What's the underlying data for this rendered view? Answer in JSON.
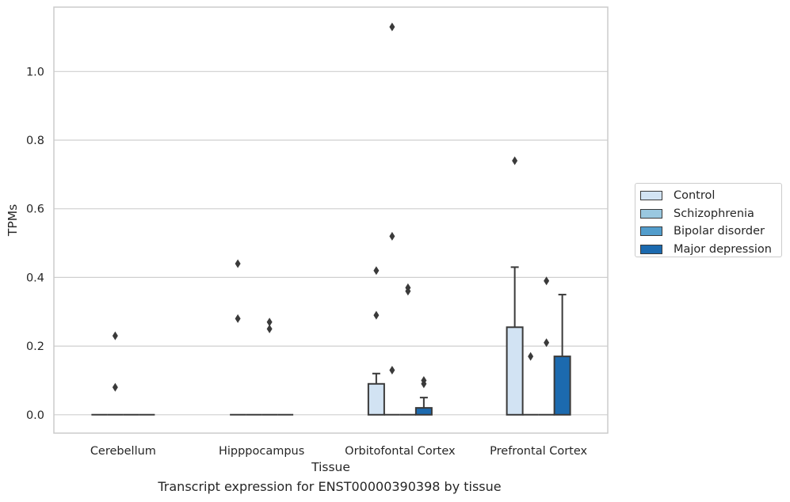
{
  "chart_data": {
    "type": "box",
    "caption": "Transcript expression for ENST00000390398 by tissue",
    "xlabel": "Tissue",
    "ylabel": "TPMs",
    "ylim": [
      -0.055,
      1.18
    ],
    "yticks": [
      "0.0",
      "0.2",
      "0.4",
      "0.6",
      "0.8",
      "1.0"
    ],
    "categories": [
      "Cerebellum",
      "Hipppocampus",
      "Orbitofontal Cortex",
      "Prefrontal Cortex"
    ],
    "grid": true,
    "legend_position": "right",
    "series": [
      {
        "name": "Control",
        "color": "#d2e3f3",
        "boxes": [
          {
            "q1": 0,
            "median": 0,
            "q3": 0,
            "whisker_low": 0,
            "whisker_high": 0,
            "outliers": []
          },
          {
            "q1": 0,
            "median": 0,
            "q3": 0,
            "whisker_low": 0,
            "whisker_high": 0,
            "outliers": [
              0.44,
              0.28
            ]
          },
          {
            "q1": 0,
            "median": 0,
            "q3": 0.09,
            "whisker_low": 0,
            "whisker_high": 0.12,
            "outliers": [
              0.42,
              0.29
            ]
          },
          {
            "q1": 0,
            "median": 0,
            "q3": 0.255,
            "whisker_low": 0,
            "whisker_high": 0.43,
            "outliers": [
              0.74
            ]
          }
        ]
      },
      {
        "name": "Schizophrenia",
        "color": "#9ac8e0",
        "boxes": [
          {
            "q1": 0,
            "median": 0,
            "q3": 0,
            "whisker_low": 0,
            "whisker_high": 0,
            "outliers": [
              0.23,
              0.08
            ]
          },
          {
            "q1": 0,
            "median": 0,
            "q3": 0,
            "whisker_low": 0,
            "whisker_high": 0,
            "outliers": []
          },
          {
            "q1": 0,
            "median": 0,
            "q3": 0,
            "whisker_low": 0,
            "whisker_high": 0,
            "outliers": [
              1.13,
              0.52,
              0.13
            ]
          },
          {
            "q1": 0,
            "median": 0,
            "q3": 0,
            "whisker_low": 0,
            "whisker_high": 0,
            "outliers": [
              0.17
            ]
          }
        ]
      },
      {
        "name": "Bipolar disorder",
        "color": "#529dcc",
        "boxes": [
          {
            "q1": 0,
            "median": 0,
            "q3": 0,
            "whisker_low": 0,
            "whisker_high": 0,
            "outliers": []
          },
          {
            "q1": 0,
            "median": 0,
            "q3": 0,
            "whisker_low": 0,
            "whisker_high": 0,
            "outliers": [
              0.27,
              0.25
            ]
          },
          {
            "q1": 0,
            "median": 0,
            "q3": 0,
            "whisker_low": 0,
            "whisker_high": 0,
            "outliers": [
              0.37,
              0.36
            ]
          },
          {
            "q1": 0,
            "median": 0,
            "q3": 0,
            "whisker_low": 0,
            "whisker_high": 0,
            "outliers": [
              0.39,
              0.21
            ]
          }
        ]
      },
      {
        "name": "Major depression",
        "color": "#1c6aaf",
        "boxes": [
          {
            "q1": 0,
            "median": 0,
            "q3": 0,
            "whisker_low": 0,
            "whisker_high": 0,
            "outliers": []
          },
          {
            "q1": 0,
            "median": 0,
            "q3": 0,
            "whisker_low": 0,
            "whisker_high": 0,
            "outliers": []
          },
          {
            "q1": 0,
            "median": 0,
            "q3": 0.02,
            "whisker_low": 0,
            "whisker_high": 0.05,
            "outliers": [
              0.1,
              0.09
            ]
          },
          {
            "q1": 0,
            "median": 0,
            "q3": 0.17,
            "whisker_low": 0,
            "whisker_high": 0.35,
            "outliers": []
          }
        ]
      }
    ]
  }
}
